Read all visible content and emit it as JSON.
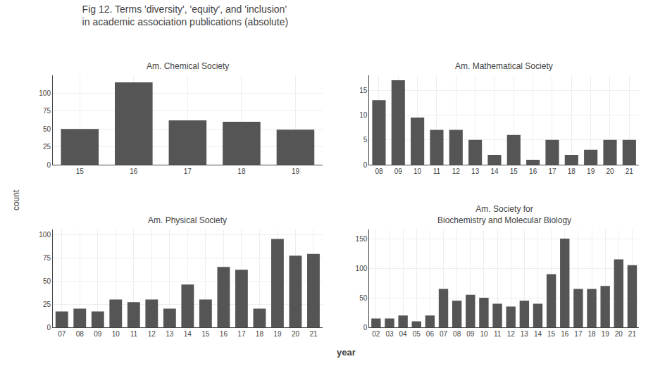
{
  "title": "Fig 12. Terms 'diversity', 'equity', and 'inclusion'",
  "subtitle": "in academic association publications (absolute)",
  "xlabel": "year",
  "ylabel": "count",
  "chart_data": [
    {
      "type": "bar",
      "title": "Am. Chemical Society",
      "categories": [
        "15",
        "16",
        "17",
        "18",
        "19"
      ],
      "values": [
        50,
        115,
        62,
        60,
        49
      ],
      "color": "#555555",
      "ylim": [
        0,
        125
      ],
      "yticks": [
        0,
        25,
        50,
        75,
        100
      ],
      "grid": true
    },
    {
      "type": "bar",
      "title": "Am. Mathematical Society",
      "categories": [
        "08",
        "09",
        "10",
        "11",
        "12",
        "13",
        "14",
        "15",
        "16",
        "17",
        "18",
        "19",
        "20",
        "21"
      ],
      "values": [
        13,
        17,
        9.5,
        7,
        7,
        5,
        2,
        6,
        1,
        5,
        2,
        3,
        5,
        5
      ],
      "color": "#555555",
      "ylim": [
        0,
        18
      ],
      "yticks": [
        0,
        5,
        10,
        15
      ],
      "grid": true
    },
    {
      "type": "bar",
      "title": "Am. Physical Society",
      "categories": [
        "07",
        "08",
        "09",
        "10",
        "11",
        "12",
        "13",
        "14",
        "15",
        "16",
        "17",
        "18",
        "19",
        "20",
        "21"
      ],
      "values": [
        17,
        20,
        17,
        30,
        27,
        30,
        20,
        46,
        30,
        65,
        62,
        20,
        95,
        77,
        79
      ],
      "color": "#555555",
      "ylim": [
        0,
        105
      ],
      "yticks": [
        0,
        25,
        50,
        75,
        100
      ],
      "grid": true
    },
    {
      "type": "bar",
      "title": "Am. Society for\nBiochemistry and Molecular Biology",
      "categories": [
        "02",
        "03",
        "04",
        "05",
        "06",
        "07",
        "08",
        "09",
        "10",
        "11",
        "12",
        "13",
        "14",
        "15",
        "16",
        "17",
        "18",
        "19",
        "20",
        "21"
      ],
      "values": [
        15,
        15,
        20,
        10,
        20,
        65,
        45,
        55,
        50,
        40,
        35,
        45,
        40,
        90,
        150,
        65,
        65,
        70,
        115,
        105
      ],
      "color": "#555555",
      "ylim": [
        0,
        165
      ],
      "yticks": [
        0,
        50,
        100,
        150
      ],
      "grid": true
    }
  ]
}
